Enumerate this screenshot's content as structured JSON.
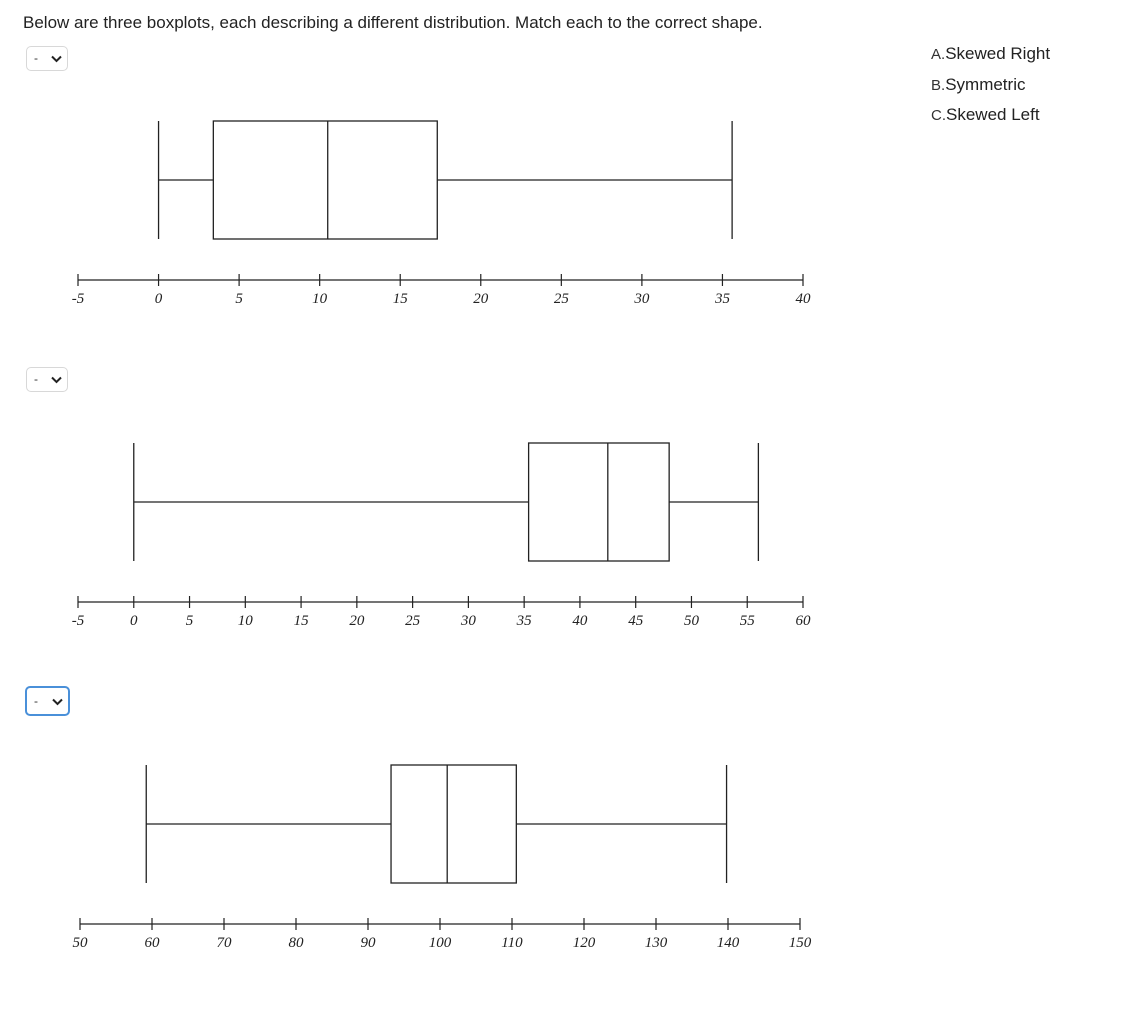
{
  "prompt": "Below are three boxplots, each describing a different distribution. Match each to the correct shape.",
  "answer_options": [
    {
      "letter": "A.",
      "text": "Skewed Right"
    },
    {
      "letter": "B.",
      "text": "Symmetric"
    },
    {
      "letter": "C.",
      "text": "Skewed Left"
    }
  ],
  "questions": [
    {
      "selected": "-",
      "focused": false
    },
    {
      "selected": "-",
      "focused": false
    },
    {
      "selected": "-",
      "focused": true
    }
  ],
  "chart_data": [
    {
      "type": "boxplot",
      "min": 0,
      "q1": 3.4,
      "median": 10.5,
      "q3": 17.3,
      "max": 35.6,
      "ticks": [
        -5,
        0,
        5,
        10,
        15,
        20,
        25,
        30,
        35,
        40
      ],
      "tick_labels": [
        "-5",
        "0",
        "5",
        "10",
        "15",
        "20",
        "25",
        "30",
        "35",
        "40"
      ],
      "xlim": [
        -5,
        40
      ]
    },
    {
      "type": "boxplot",
      "min": 0,
      "q1": 35.4,
      "median": 42.5,
      "q3": 48,
      "max": 56,
      "ticks": [
        -5,
        0,
        5,
        10,
        15,
        20,
        25,
        30,
        35,
        40,
        45,
        50,
        55,
        60
      ],
      "tick_labels": [
        "-5",
        "0",
        "5",
        "10",
        "15",
        "20",
        "25",
        "30",
        "35",
        "40",
        "45",
        "50",
        "55",
        "60"
      ],
      "xlim": [
        -5,
        60
      ]
    },
    {
      "type": "boxplot",
      "min": 59.2,
      "q1": 93.2,
      "median": 101,
      "q3": 110.6,
      "max": 139.8,
      "ticks": [
        50,
        60,
        70,
        80,
        90,
        100,
        110,
        120,
        130,
        140,
        150
      ],
      "tick_labels": [
        "50",
        "60",
        "70",
        "80",
        "90",
        "100",
        "110",
        "120",
        "130",
        "140",
        "150"
      ],
      "xlim": [
        50,
        150
      ]
    }
  ]
}
